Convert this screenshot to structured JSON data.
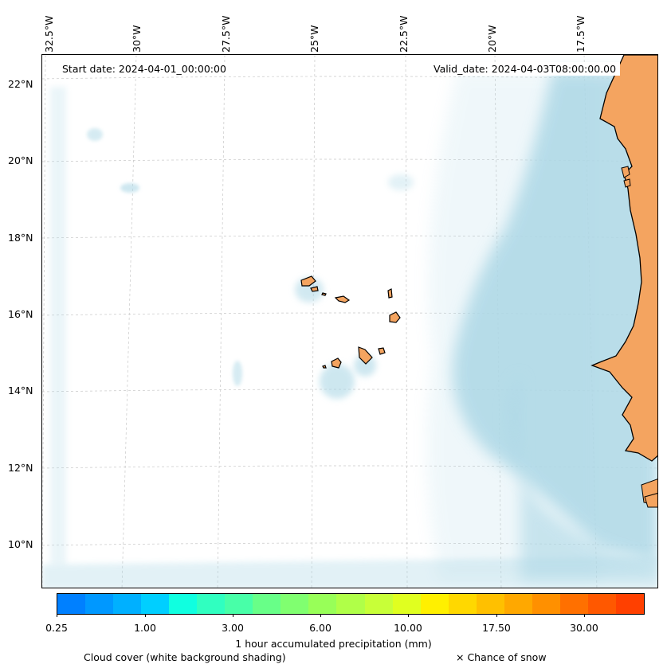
{
  "map": {
    "start_date": "Start date: 2024-04-01_00:00:00",
    "valid_date": "Valid_date: 2024-04-03T08:00:00.00",
    "longitude_labels": [
      "32.5°W",
      "30°W",
      "27.5°W",
      "25°W",
      "22.5°W",
      "20°W",
      "17.5°W"
    ],
    "latitude_labels": [
      "22°N",
      "20°N",
      "18°N",
      "16°N",
      "14°N",
      "12°N",
      "10°N"
    ],
    "land_color": "#f4a460",
    "cloud_color": "#add8e6"
  },
  "colorbar": {
    "label": "1 hour accumulated precipitation (mm)",
    "tick_labels": [
      "0.25",
      "1.00",
      "3.00",
      "6.00",
      "10.00",
      "17.50",
      "30.00"
    ],
    "colors": [
      "#0080ff",
      "#0098ff",
      "#00b0ff",
      "#00cfff",
      "#10ffe0",
      "#30ffc0",
      "#48ffa8",
      "#68ff88",
      "#80ff70",
      "#98ff58",
      "#b0ff48",
      "#c8ff38",
      "#e0ff20",
      "#fff000",
      "#ffd800",
      "#ffc000",
      "#ffa800",
      "#ff9000",
      "#ff7000",
      "#ff5800",
      "#ff4000"
    ]
  },
  "legend": {
    "cloud_cover_note": "Cloud cover (white background shading)",
    "snow_note": "× Chance of snow"
  }
}
